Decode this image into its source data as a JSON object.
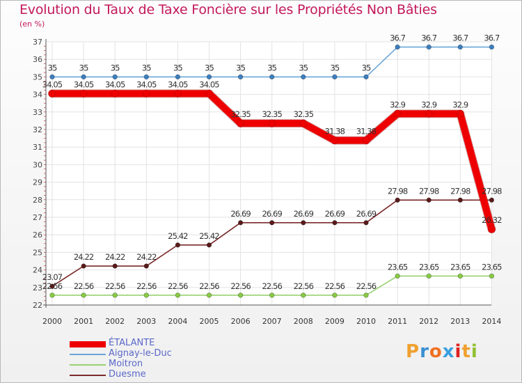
{
  "title": "Evolution du Taux de Taxe Foncière sur les Propriétés Non Bâties",
  "subtitle": "(en %)",
  "logo": {
    "letters": [
      "P",
      "r",
      "o",
      "x",
      "i",
      "t",
      "i"
    ],
    "colors": [
      "#f0a030",
      "#3a8fd0",
      "#f07020",
      "#3aa0e0",
      "#e02020",
      "#f0a030",
      "#90c030"
    ]
  },
  "chart_data": {
    "type": "line",
    "title": "Evolution du Taux de Taxe Foncière sur les Propriétés Non Bâties",
    "ylabel": "(en %)",
    "xlabel": "",
    "categories": [
      "2000",
      "2001",
      "2002",
      "2003",
      "2004",
      "2005",
      "2006",
      "2007",
      "2008",
      "2009",
      "2010",
      "2011",
      "2012",
      "2013",
      "2014"
    ],
    "ylim": [
      22,
      37
    ],
    "yticks": [
      "22",
      "23",
      "24",
      "25",
      "26",
      "27",
      "28",
      "29",
      "30",
      "31",
      "32",
      "33",
      "34",
      "35",
      "36",
      "37"
    ],
    "grid": true,
    "series": [
      {
        "name": "ÉTALANTE",
        "color": "#ee0000",
        "values": [
          34.05,
          34.05,
          34.05,
          34.05,
          34.05,
          34.05,
          32.35,
          32.35,
          32.35,
          31.38,
          31.38,
          32.9,
          32.9,
          32.9,
          26.32
        ],
        "labels": [
          "34.05",
          "34.05",
          "34.05",
          "34.05",
          "34.05",
          "34.05",
          "32.35",
          "32.35",
          "32.35",
          "31.38",
          "31.38",
          "32.9",
          "32.9",
          "32.9",
          "26.32"
        ]
      },
      {
        "name": "Aignay-le-Duc",
        "color": "#6aa6d8",
        "values": [
          35,
          35,
          35,
          35,
          35,
          35,
          35,
          35,
          35,
          35,
          35,
          36.7,
          36.7,
          36.7,
          36.7
        ],
        "labels": [
          "35",
          "35",
          "35",
          "35",
          "35",
          "35",
          "35",
          "35",
          "35",
          "35",
          "35",
          "36.7",
          "36.7",
          "36.7",
          "36.7"
        ]
      },
      {
        "name": "Moitron",
        "color": "#99d070",
        "values": [
          22.56,
          22.56,
          22.56,
          22.56,
          22.56,
          22.56,
          22.56,
          22.56,
          22.56,
          22.56,
          22.56,
          23.65,
          23.65,
          23.65,
          23.65
        ],
        "labels": [
          "22.56",
          "22.56",
          "22.56",
          "22.56",
          "22.56",
          "22.56",
          "22.56",
          "22.56",
          "22.56",
          "22.56",
          "22.56",
          "23.65",
          "23.65",
          "23.65",
          "23.65"
        ]
      },
      {
        "name": "Duesme",
        "color": "#7a2a2a",
        "values": [
          23.07,
          24.22,
          24.22,
          24.22,
          25.42,
          25.42,
          26.69,
          26.69,
          26.69,
          26.69,
          26.69,
          27.98,
          27.98,
          27.98,
          27.98
        ],
        "labels": [
          "23.07",
          "24.22",
          "24.22",
          "24.22",
          "25.42",
          "25.42",
          "26.69",
          "26.69",
          "26.69",
          "26.69",
          "26.69",
          "27.98",
          "27.98",
          "27.98",
          "27.98"
        ]
      }
    ]
  }
}
